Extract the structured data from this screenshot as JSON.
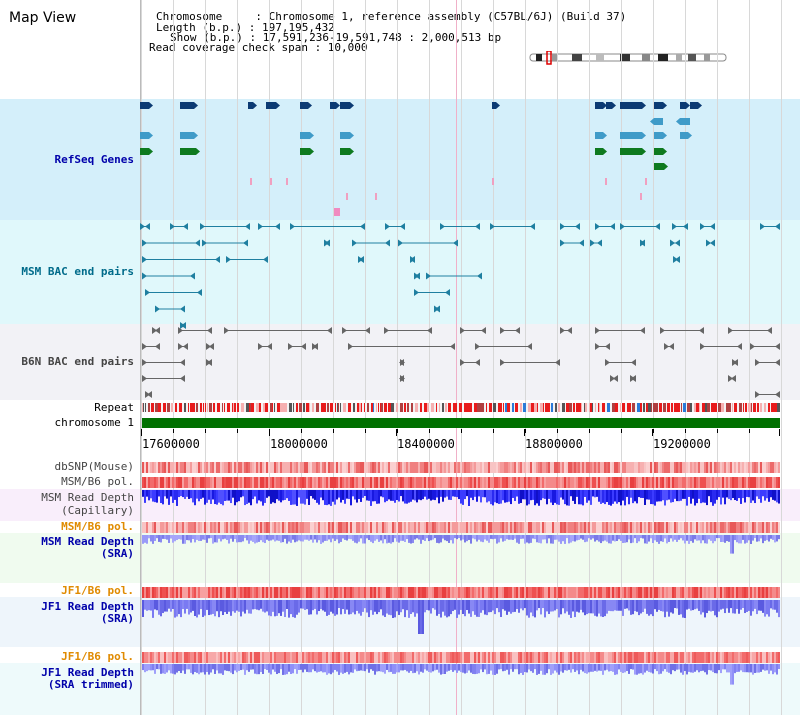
{
  "view_title": "Map View",
  "info": {
    "chromosome_line": "Chromosome     : Chromosome 1, reference assembly (C57BL/6J) (Build 37)",
    "length_line": "Length (b.p.) : 197,195,432",
    "show_line": "Show (b.p.) : 17,591,236-19,591,748 : 2,000,513 bp",
    "coverage_line": "Read coverage check span : 10,000"
  },
  "tracks": {
    "refseq": {
      "label": "RefSeq Genes",
      "color": "#0000aa"
    },
    "msm_bac": {
      "label": "MSM BAC end pairs",
      "color": "#006b8a"
    },
    "b6n_bac": {
      "label": "B6N BAC end pairs",
      "color": "#444444"
    },
    "repeat": {
      "label": "Repeat"
    },
    "chromosome": {
      "label": "chromosome 1"
    },
    "dbsnp": {
      "label": "dbSNP(Mouse)"
    },
    "msm_b6_pol_1": {
      "label": "MSM/B6 pol."
    },
    "msm_read_depth_cap": {
      "label1": "MSM Read Depth",
      "label2": "(Capillary)"
    },
    "msm_b6_pol_2": {
      "label": "MSM/B6 pol.",
      "color": "#e08a00"
    },
    "msm_read_depth_sra": {
      "label1": "MSM Read Depth",
      "label2": "(SRA)",
      "color": "#0000aa"
    },
    "jf1_b6_pol_1": {
      "label": "JF1/B6 pol.",
      "color": "#e08a00"
    },
    "jf1_read_depth_sra": {
      "label1": "JF1 Read Depth",
      "label2": "(SRA)",
      "color": "#0000aa"
    },
    "jf1_b6_pol_2": {
      "label": "JF1/B6 pol.",
      "color": "#e08a00"
    },
    "jf1_read_depth_trim": {
      "label1": "JF1 Read Depth",
      "label2": "(SRA trimmed)",
      "color": "#0000aa"
    }
  },
  "axis": {
    "ticks": [
      "17600000",
      "18000000",
      "18400000",
      "18800000",
      "19200000"
    ]
  },
  "colors": {
    "refseq_bg": "#d4effa",
    "msm_bg": "#e0f8fb",
    "b6n_bg": "#f2f2f6",
    "gene_dark": "#0b3a73",
    "gene_mid": "#3f9bc8",
    "gene_green": "#0e7a1f",
    "gene_pink": "#f0a0c0",
    "chrom_green": "#007000"
  }
}
